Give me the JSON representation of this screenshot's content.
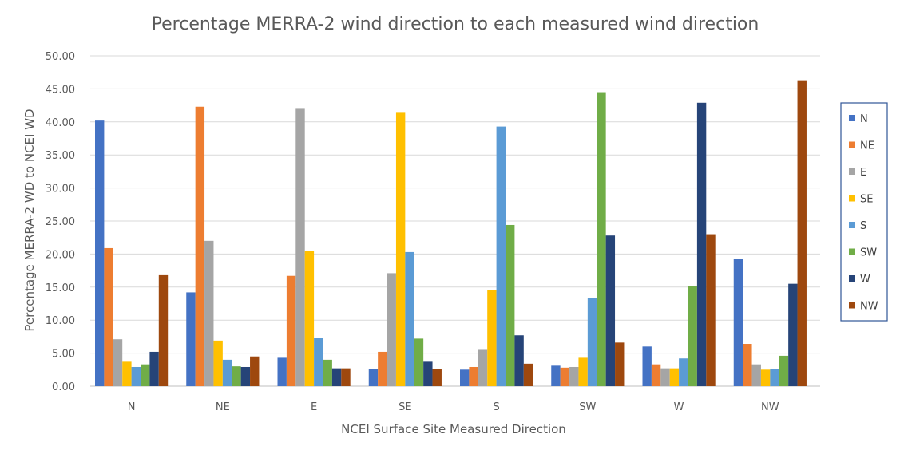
{
  "chart_data": {
    "type": "bar",
    "title": "Percentage MERRA-2 wind direction to each measured wind direction",
    "xlabel": "NCEI Surface Site Measured Direction",
    "ylabel": "Percentage MERRA-2 WD to NCEI WD",
    "ylim": [
      0,
      50
    ],
    "yticks": [
      "0.00",
      "5.00",
      "10.00",
      "15.00",
      "20.00",
      "25.00",
      "30.00",
      "35.00",
      "40.00",
      "45.00",
      "50.00"
    ],
    "grid": true,
    "legend_position": "right",
    "categories": [
      "N",
      "NE",
      "E",
      "SE",
      "S",
      "SW",
      "W",
      "NW"
    ],
    "series": [
      {
        "name": "N",
        "color": "#4472c4",
        "values": [
          40.2,
          14.2,
          4.3,
          2.6,
          2.5,
          3.1,
          6.0,
          19.3
        ]
      },
      {
        "name": "NE",
        "color": "#ed7d31",
        "values": [
          20.9,
          42.3,
          16.7,
          5.2,
          2.9,
          2.8,
          3.3,
          6.4
        ]
      },
      {
        "name": "E",
        "color": "#a5a5a5",
        "values": [
          7.1,
          22.0,
          42.1,
          17.1,
          5.5,
          2.9,
          2.7,
          3.3
        ]
      },
      {
        "name": "SE",
        "color": "#ffc000",
        "values": [
          3.7,
          6.9,
          20.5,
          41.5,
          14.6,
          4.3,
          2.7,
          2.5
        ]
      },
      {
        "name": "S",
        "color": "#5b9bd5",
        "values": [
          2.9,
          4.0,
          7.3,
          20.3,
          39.3,
          13.4,
          4.2,
          2.6
        ]
      },
      {
        "name": "SW",
        "color": "#70ad47",
        "values": [
          3.3,
          3.0,
          4.0,
          7.2,
          24.4,
          44.5,
          15.2,
          4.6
        ]
      },
      {
        "name": "W",
        "color": "#264478",
        "values": [
          5.2,
          2.9,
          2.7,
          3.7,
          7.7,
          22.8,
          42.9,
          15.5
        ]
      },
      {
        "name": "NW",
        "color": "#9e480e",
        "values": [
          16.8,
          4.5,
          2.7,
          2.6,
          3.4,
          6.6,
          23.0,
          46.3
        ]
      }
    ]
  }
}
